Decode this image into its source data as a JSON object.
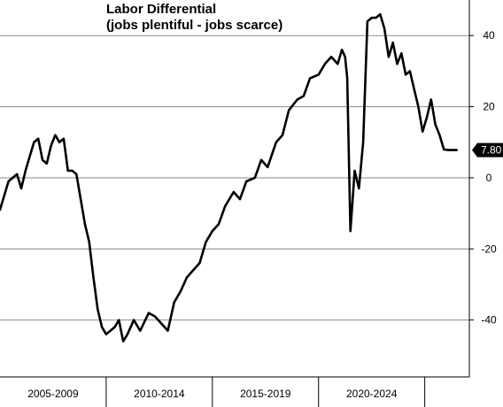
{
  "chart_data": {
    "type": "line",
    "title": "Labor Differential",
    "subtitle": "(jobs plentiful - jobs scarce)",
    "xlabel": "",
    "ylabel": "",
    "xlim": [
      2004.0,
      2026.1
    ],
    "ylim": [
      -56,
      50
    ],
    "y_ticks": [
      40,
      20,
      0,
      -20,
      -40
    ],
    "y_tick_labels": [
      "40",
      "20",
      "0",
      "-20",
      "-40"
    ],
    "grid": "horizontal",
    "y_axis_side": "right",
    "x_bands": [
      {
        "label": "2005-2009",
        "start": 2004.0,
        "end": 2009.0
      },
      {
        "label": "2010-2014",
        "start": 2009.0,
        "end": 2014.0
      },
      {
        "label": "2015-2019",
        "start": 2014.0,
        "end": 2019.0
      },
      {
        "label": "2020-2024",
        "start": 2019.0,
        "end": 2024.0
      }
    ],
    "last_value_label": "7.80",
    "line_color": "#000000",
    "series": [
      {
        "x": [
          2004.0,
          2004.2,
          2004.4,
          2004.6,
          2004.8,
          2005.0,
          2005.2,
          2005.4,
          2005.6,
          2005.8,
          2006.0,
          2006.2,
          2006.4,
          2006.6,
          2006.8,
          2007.0,
          2007.2,
          2007.4,
          2007.6,
          2007.8,
          2008.0,
          2008.2,
          2008.4,
          2008.6,
          2008.8,
          2009.0,
          2009.2,
          2009.4,
          2009.6,
          2009.8,
          2010.0,
          2010.3,
          2010.6,
          2011.0,
          2011.3,
          2011.6,
          2011.9,
          2012.2,
          2012.5,
          2012.8,
          2013.1,
          2013.4,
          2013.7,
          2014.0,
          2014.3,
          2014.6,
          2015.0,
          2015.3,
          2015.6,
          2016.0,
          2016.3,
          2016.6,
          2017.0,
          2017.3,
          2017.6,
          2018.0,
          2018.3,
          2018.6,
          2019.0,
          2019.3,
          2019.6,
          2019.9,
          2020.1,
          2020.25,
          2020.35,
          2020.5,
          2020.7,
          2020.9,
          2021.1,
          2021.3,
          2021.5,
          2021.7,
          2021.9,
          2022.1,
          2022.3,
          2022.5,
          2022.7,
          2022.9,
          2023.1,
          2023.3,
          2023.5,
          2023.7,
          2023.9,
          2024.1,
          2024.3,
          2024.5,
          2024.7,
          2024.9,
          2025.1,
          2025.3,
          2025.5
        ],
        "y": [
          -9,
          -5,
          -1,
          0,
          1,
          -3,
          2,
          6,
          10,
          11,
          5,
          4,
          9,
          12,
          10,
          11,
          2,
          2,
          1,
          -6,
          -13,
          -18,
          -28,
          -37,
          -42,
          -44,
          -43,
          -42,
          -40,
          -46,
          -44,
          -40,
          -43,
          -38,
          -39,
          -41,
          -43,
          -35,
          -32,
          -28,
          -26,
          -24,
          -18,
          -15,
          -13,
          -8,
          -4,
          -6,
          -1,
          0,
          5,
          3,
          10,
          12,
          19,
          22,
          23,
          28,
          29,
          32,
          34,
          32,
          36,
          34,
          28,
          -15,
          2,
          -3,
          10,
          44,
          45,
          45,
          46,
          42,
          34,
          38,
          32,
          35,
          29,
          30,
          25,
          20,
          13,
          17,
          22,
          15,
          12,
          8,
          7.8,
          7.8,
          7.8
        ]
      }
    ]
  }
}
